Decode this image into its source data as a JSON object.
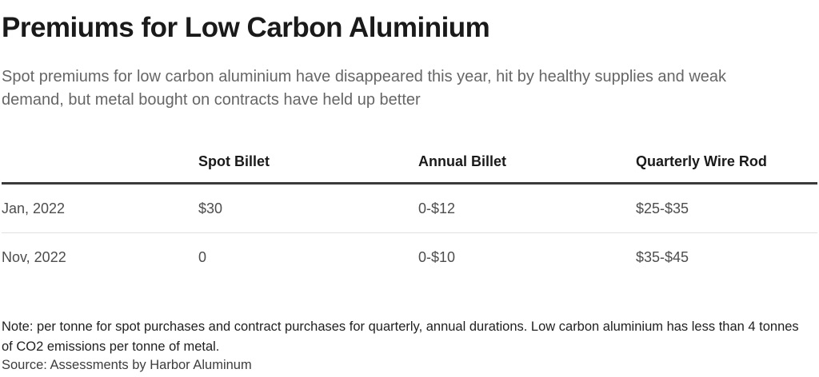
{
  "header": {
    "title": "Premiums for Low Carbon Aluminium",
    "subtitle": "Spot premiums for low carbon aluminium have disappeared this year, hit by healthy supplies and weak demand, but metal bought on contracts have held up better"
  },
  "chart_data": {
    "type": "table",
    "title": "Premiums for Low Carbon Aluminium",
    "subtitle": "Spot premiums for low carbon aluminium have disappeared this year, hit by healthy supplies and weak demand, but metal bought on contracts have held up better",
    "columns": [
      "",
      "Spot Billet",
      "Annual Billet",
      "Quarterly Wire Rod"
    ],
    "rows": [
      [
        "Jan, 2022",
        "$30",
        "0-$12",
        "$25-$35"
      ],
      [
        "Nov, 2022",
        "0",
        "0-$10",
        "$35-$45"
      ]
    ],
    "note": "Note: per tonne for spot purchases and contract purchases for quarterly, annual durations. Low carbon aluminium has less than 4 tonnes of CO2 emissions per tonne of metal.",
    "source": "Source: Assessments by Harbor Aluminum"
  },
  "table": {
    "col_headers": [
      "",
      "Spot Billet",
      "Annual Billet",
      "Quarterly Wire Rod"
    ],
    "rows": [
      {
        "label": "Jan, 2022",
        "spot_billet": "$30",
        "annual_billet": "0-$12",
        "quarterly_wire_rod": "$25-$35"
      },
      {
        "label": "Nov, 2022",
        "spot_billet": "0",
        "annual_billet": "0-$10",
        "quarterly_wire_rod": "$35-$45"
      }
    ]
  },
  "footer": {
    "note": "Note: per tonne for spot purchases and contract purchases for quarterly, annual durations. Low carbon aluminium has less than 4 tonnes of CO2 emissions per tonne of metal.",
    "source": "Source: Assessments by Harbor Aluminum"
  },
  "colors": {
    "title_text": "#1a1a1a",
    "subtitle_text": "#666666",
    "cell_text": "#4d4d4d",
    "header_rule": "#3a3a3a",
    "row_separator": "#e0e0e0",
    "background": "#ffffff"
  }
}
